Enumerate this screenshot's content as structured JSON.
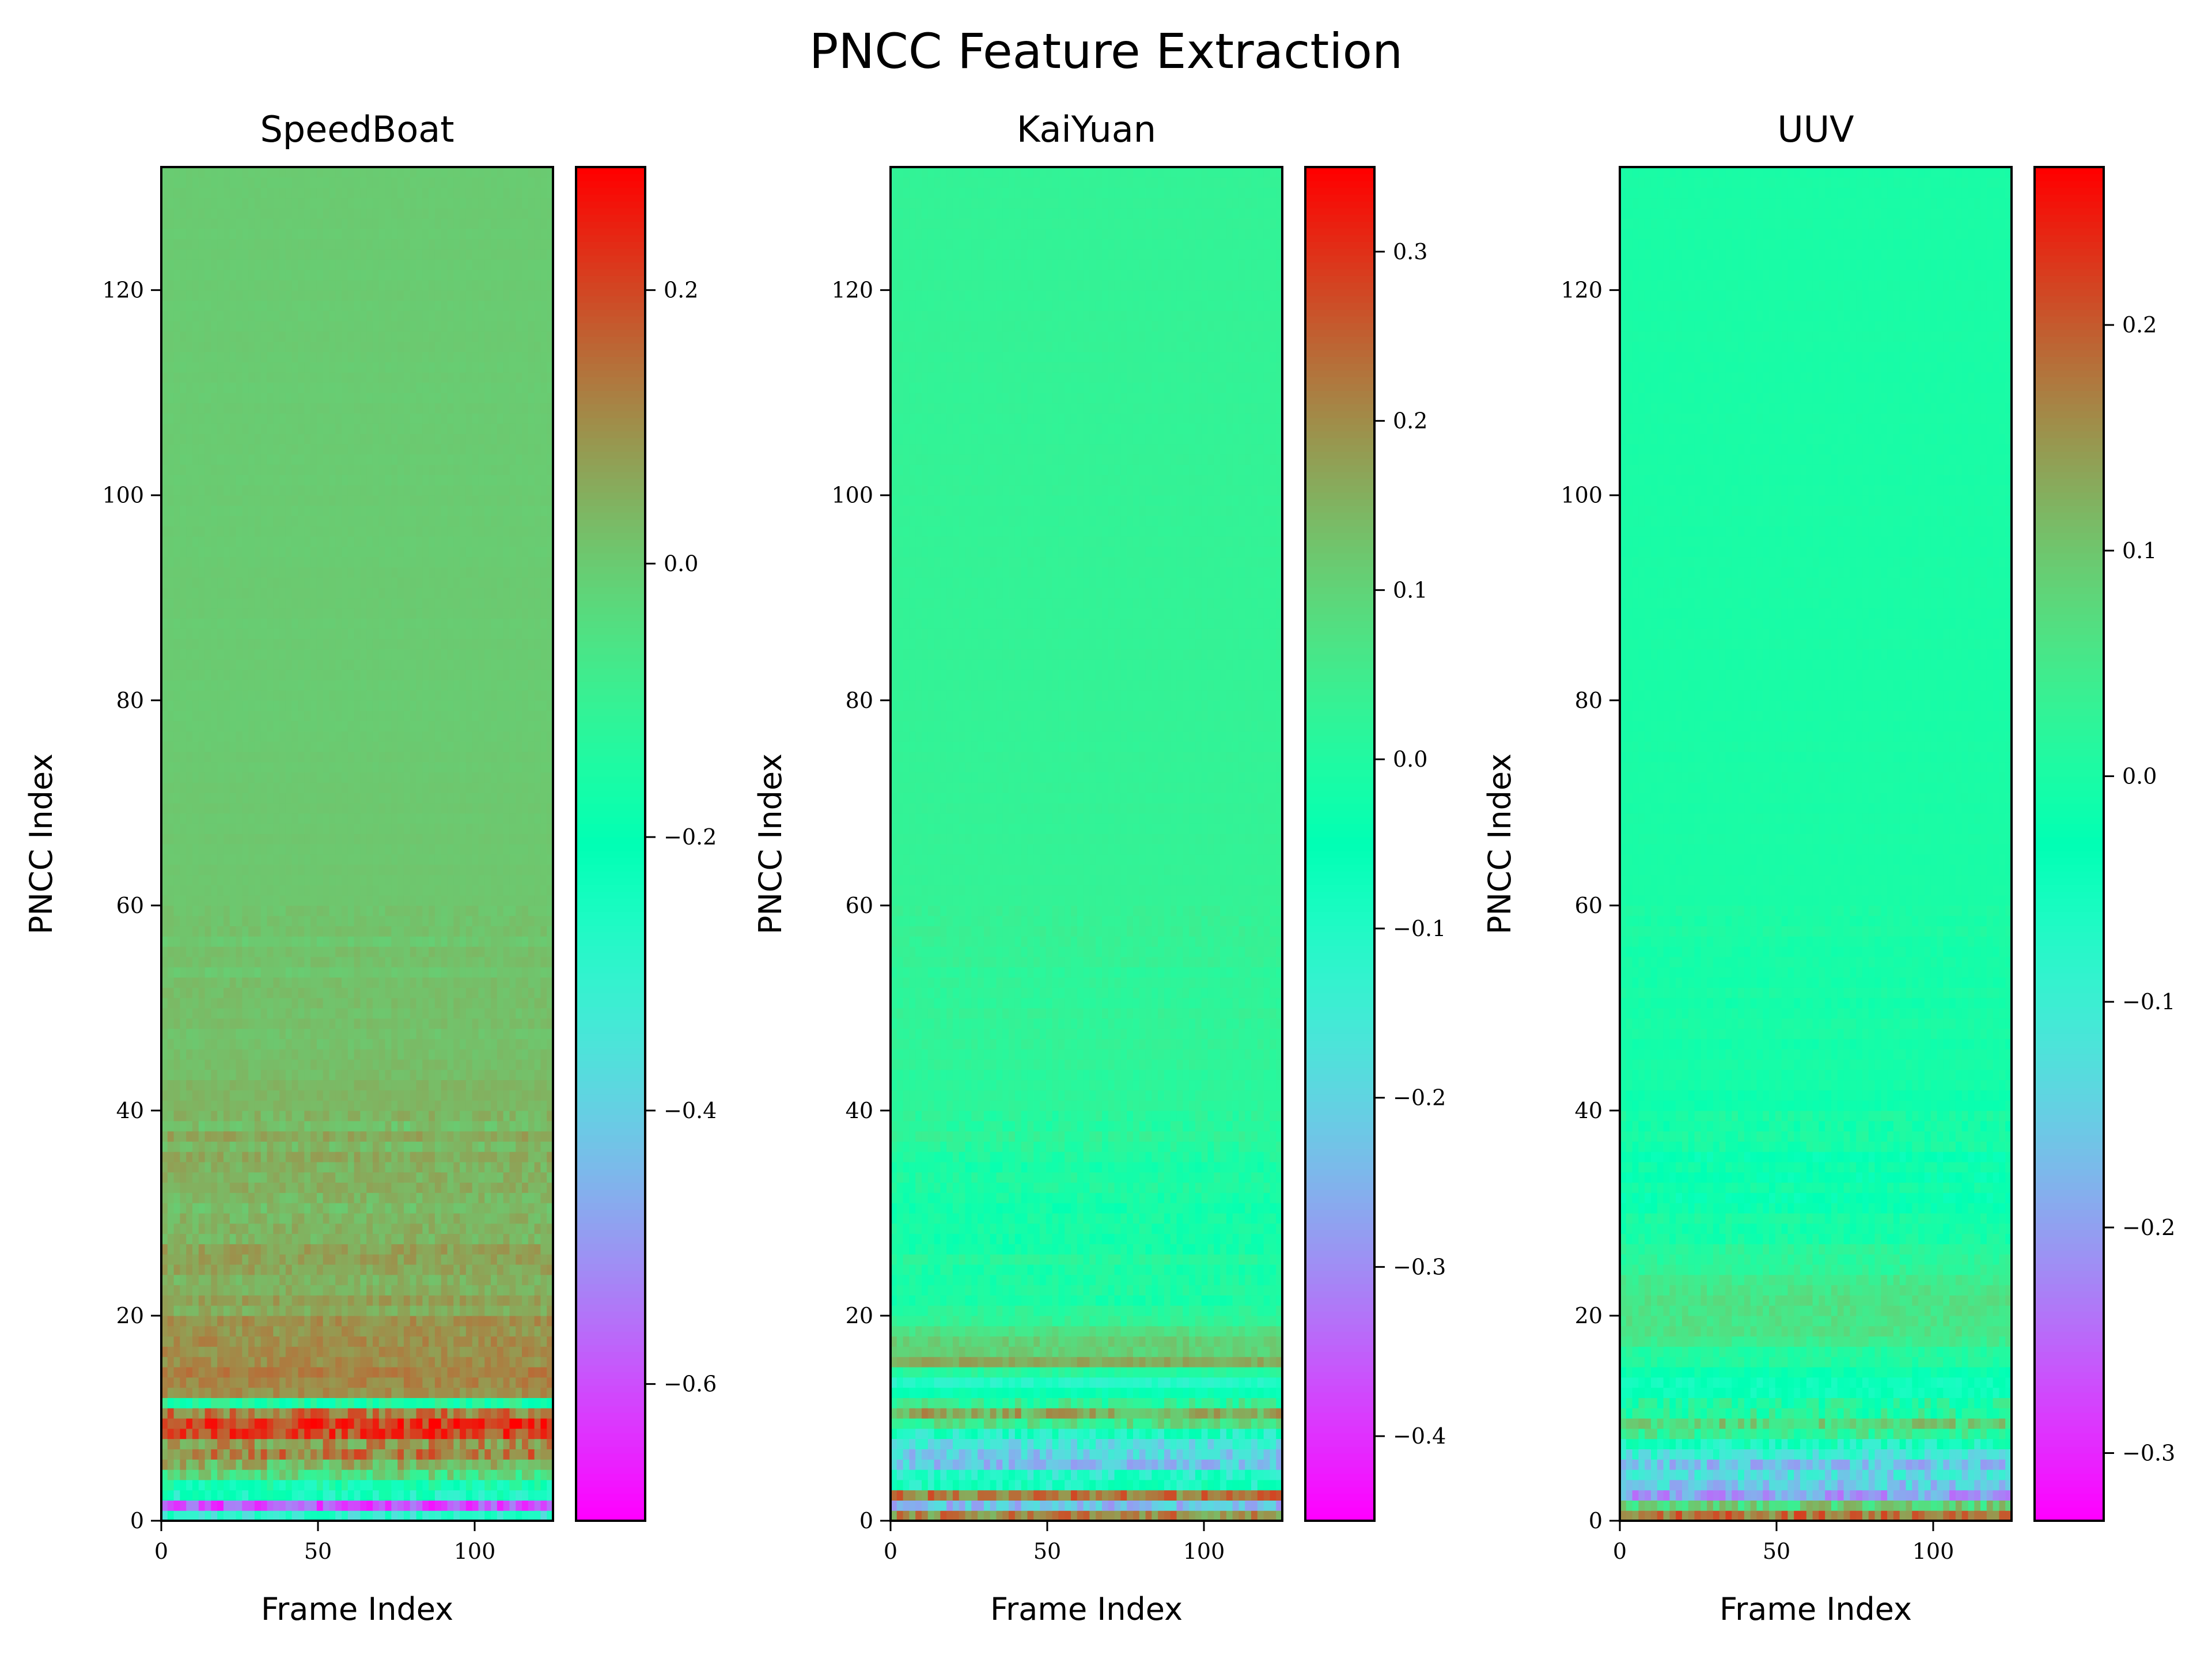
{
  "figure": {
    "title": "PNCC Feature Extraction"
  },
  "chart_data": [
    {
      "type": "heatmap",
      "title": "SpeedBoat",
      "xlabel": "Frame Index",
      "ylabel": "PNCC Index",
      "xlim": [
        0,
        125
      ],
      "ylim": [
        0,
        132
      ],
      "xticks": [
        0,
        50,
        100
      ],
      "yticks": [
        0,
        20,
        40,
        60,
        80,
        100,
        120
      ],
      "colormap": "rainbow",
      "vmin": -0.7,
      "vmax": 0.29,
      "colorbar_ticks": [
        -0.6,
        -0.4,
        -0.2,
        0.0,
        0.2
      ],
      "colorbar_tick_labels": [
        "−0.6",
        "−0.4",
        "−0.2",
        "0.0",
        "0.2"
      ],
      "row_mean_profile": [
        {
          "pncc": 0,
          "value": -0.25
        },
        {
          "pncc": 1,
          "value": -0.55
        },
        {
          "pncc": 2,
          "value": -0.3
        },
        {
          "pncc": 3,
          "value": -0.2
        },
        {
          "pncc": 5,
          "value": 0.05
        },
        {
          "pncc": 7,
          "value": 0.15
        },
        {
          "pncc": 10,
          "value": 0.18
        },
        {
          "pncc": 11,
          "value": -0.2
        },
        {
          "pncc": 12,
          "value": 0.12
        },
        {
          "pncc": 15,
          "value": 0.1
        },
        {
          "pncc": 20,
          "value": 0.07
        },
        {
          "pncc": 30,
          "value": 0.05
        },
        {
          "pncc": 40,
          "value": 0.04
        },
        {
          "pncc": 50,
          "value": 0.02
        },
        {
          "pncc": 60,
          "value": 0.01
        },
        {
          "pncc": 80,
          "value": 0.0
        },
        {
          "pncc": 131,
          "value": 0.0
        }
      ]
    },
    {
      "type": "heatmap",
      "title": "KaiYuan",
      "xlabel": "Frame Index",
      "ylabel": "PNCC Index",
      "xlim": [
        0,
        125
      ],
      "ylim": [
        0,
        132
      ],
      "xticks": [
        0,
        50,
        100
      ],
      "yticks": [
        0,
        20,
        40,
        60,
        80,
        100,
        120
      ],
      "colormap": "rainbow",
      "vmin": -0.45,
      "vmax": 0.35,
      "colorbar_ticks": [
        -0.4,
        -0.3,
        -0.2,
        -0.1,
        0.0,
        0.1,
        0.2,
        0.3
      ],
      "colorbar_tick_labels": [
        "−0.4",
        "−0.3",
        "−0.2",
        "−0.1",
        "0.0",
        "0.1",
        "0.2",
        "0.3"
      ],
      "row_mean_profile": [
        {
          "pncc": 0,
          "value": 0.2
        },
        {
          "pncc": 1,
          "value": -0.25
        },
        {
          "pncc": 2,
          "value": 0.22
        },
        {
          "pncc": 3,
          "value": -0.1
        },
        {
          "pncc": 5,
          "value": -0.2
        },
        {
          "pncc": 7,
          "value": -0.15
        },
        {
          "pncc": 10,
          "value": 0.12
        },
        {
          "pncc": 13,
          "value": -0.12
        },
        {
          "pncc": 15,
          "value": 0.15
        },
        {
          "pncc": 20,
          "value": 0.0
        },
        {
          "pncc": 30,
          "value": -0.01
        },
        {
          "pncc": 40,
          "value": 0.02
        },
        {
          "pncc": 60,
          "value": 0.03
        },
        {
          "pncc": 131,
          "value": 0.03
        }
      ]
    },
    {
      "type": "heatmap",
      "title": "UUV",
      "xlabel": "Frame Index",
      "ylabel": "PNCC Index",
      "xlim": [
        0,
        125
      ],
      "ylim": [
        0,
        132
      ],
      "xticks": [
        0,
        50,
        100
      ],
      "yticks": [
        0,
        20,
        40,
        60,
        80,
        100,
        120
      ],
      "colormap": "rainbow",
      "vmin": -0.33,
      "vmax": 0.27,
      "colorbar_ticks": [
        -0.3,
        -0.2,
        -0.1,
        0.0,
        0.1,
        0.2
      ],
      "colorbar_tick_labels": [
        "−0.3",
        "−0.2",
        "−0.1",
        "0.0",
        "0.1",
        "0.2"
      ],
      "row_mean_profile": [
        {
          "pncc": 0,
          "value": 0.2
        },
        {
          "pncc": 1,
          "value": 0.05
        },
        {
          "pncc": 2,
          "value": -0.2
        },
        {
          "pncc": 4,
          "value": -0.15
        },
        {
          "pncc": 6,
          "value": -0.1
        },
        {
          "pncc": 9,
          "value": 0.05
        },
        {
          "pncc": 12,
          "value": -0.05
        },
        {
          "pncc": 18,
          "value": 0.05
        },
        {
          "pncc": 22,
          "value": 0.06
        },
        {
          "pncc": 30,
          "value": -0.02
        },
        {
          "pncc": 40,
          "value": -0.01
        },
        {
          "pncc": 55,
          "value": 0.0
        },
        {
          "pncc": 131,
          "value": 0.0
        }
      ]
    }
  ]
}
